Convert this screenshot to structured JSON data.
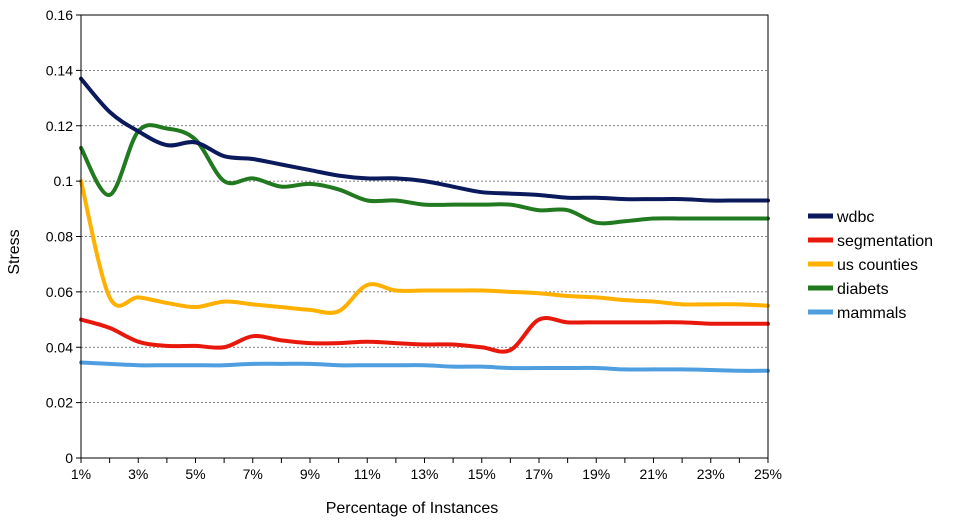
{
  "chart_data": {
    "type": "line",
    "xlabel": "Percentage of Instances",
    "ylabel": "Stress",
    "ylim": [
      0,
      0.16
    ],
    "y_ticks": [
      "0",
      "0.02",
      "0.04",
      "0.06",
      "0.08",
      "0.1",
      "0.12",
      "0.14",
      "0.16"
    ],
    "x": [
      1,
      2,
      3,
      4,
      5,
      6,
      7,
      8,
      9,
      10,
      11,
      12,
      13,
      14,
      15,
      16,
      17,
      18,
      19,
      20,
      21,
      22,
      23,
      24,
      25
    ],
    "x_tick_labels": [
      "1%",
      "3%",
      "5%",
      "7%",
      "9%",
      "11%",
      "13%",
      "15%",
      "17%",
      "19%",
      "21%",
      "23%",
      "25%"
    ],
    "grid": true,
    "legend_position": "right",
    "series": [
      {
        "name": "wdbc",
        "color": "#0b1a5c",
        "values": [
          0.137,
          0.125,
          0.118,
          0.113,
          0.114,
          0.109,
          0.108,
          0.106,
          0.104,
          0.102,
          0.101,
          0.101,
          0.1,
          0.098,
          0.096,
          0.0955,
          0.095,
          0.094,
          0.094,
          0.0935,
          0.0935,
          0.0935,
          0.093,
          0.093,
          0.093
        ]
      },
      {
        "name": "segmentation",
        "color": "#e8190c",
        "values": [
          0.05,
          0.047,
          0.042,
          0.0405,
          0.0405,
          0.04,
          0.044,
          0.0425,
          0.0415,
          0.0415,
          0.042,
          0.0415,
          0.041,
          0.041,
          0.04,
          0.039,
          0.05,
          0.049,
          0.049,
          0.049,
          0.049,
          0.049,
          0.0485,
          0.0485,
          0.0485
        ]
      },
      {
        "name": "us counties",
        "color": "#ffb000",
        "values": [
          0.1,
          0.058,
          0.058,
          0.056,
          0.0545,
          0.0565,
          0.0555,
          0.0545,
          0.0535,
          0.053,
          0.0625,
          0.0605,
          0.0605,
          0.0605,
          0.0605,
          0.06,
          0.0595,
          0.0585,
          0.058,
          0.057,
          0.0565,
          0.0555,
          0.0555,
          0.0555,
          0.055
        ]
      },
      {
        "name": "diabets",
        "color": "#217a1f",
        "values": [
          0.112,
          0.095,
          0.118,
          0.119,
          0.115,
          0.1,
          0.101,
          0.098,
          0.099,
          0.097,
          0.093,
          0.093,
          0.0915,
          0.0915,
          0.0915,
          0.0915,
          0.0895,
          0.0895,
          0.085,
          0.0855,
          0.0865,
          0.0865,
          0.0865,
          0.0865,
          0.0865
        ]
      },
      {
        "name": "mammals",
        "color": "#4f9fe0",
        "values": [
          0.0345,
          0.034,
          0.0335,
          0.0335,
          0.0335,
          0.0335,
          0.034,
          0.034,
          0.034,
          0.0335,
          0.0335,
          0.0335,
          0.0335,
          0.033,
          0.033,
          0.0325,
          0.0325,
          0.0325,
          0.0325,
          0.032,
          0.032,
          0.032,
          0.0318,
          0.0315,
          0.0315
        ]
      }
    ]
  }
}
